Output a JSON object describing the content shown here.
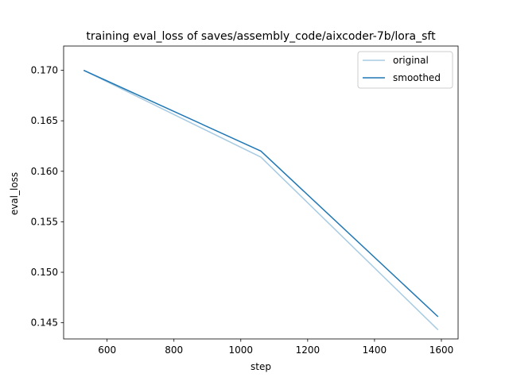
{
  "chart_data": {
    "type": "line",
    "title": "training eval_loss of saves/assembly_code/aixcoder-7b/lora_sft",
    "xlabel": "step",
    "ylabel": "eval_loss",
    "xlim": [
      470,
      1650
    ],
    "ylim": [
      0.1434,
      0.1724
    ],
    "xticks": [
      600,
      800,
      1000,
      1200,
      1400,
      1600
    ],
    "xtick_labels": [
      "600",
      "800",
      "1000",
      "1200",
      "1400",
      "1600"
    ],
    "yticks": [
      0.145,
      0.15,
      0.155,
      0.16,
      0.165,
      0.17
    ],
    "ytick_labels": [
      "0.145",
      "0.150",
      "0.155",
      "0.160",
      "0.165",
      "0.170"
    ],
    "grid": false,
    "legend_position": "top-right",
    "series": [
      {
        "name": "original",
        "color": "#a6cbe3",
        "x": [
          530,
          1060,
          1590
        ],
        "y": [
          0.17,
          0.1614,
          0.1443
        ]
      },
      {
        "name": "smoothed",
        "color": "#1f77b4",
        "x": [
          530,
          1060,
          1590
        ],
        "y": [
          0.17,
          0.162,
          0.1456
        ]
      }
    ]
  }
}
